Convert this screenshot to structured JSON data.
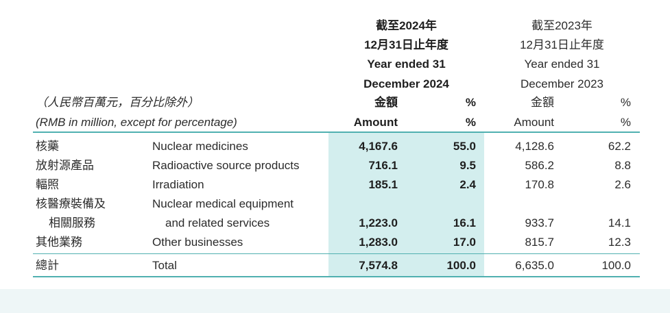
{
  "header": {
    "y2024": [
      "截至2024年",
      "12月31日止年度",
      "Year ended 31",
      "December 2024"
    ],
    "y2023": [
      "截至2023年",
      "12月31日止年度",
      "Year ended 31",
      "December 2023"
    ],
    "unit_cn": "（人民幣百萬元，百分比除外）",
    "unit_en": "(RMB in million, except for percentage)",
    "amount_cn": "金額",
    "amount_en": "Amount",
    "pct": "%"
  },
  "rows": [
    {
      "cn": "核藥",
      "en": "Nuclear medicines",
      "a2024": "4,167.6",
      "p2024": "55.0",
      "a2023": "4,128.6",
      "p2023": "62.2"
    },
    {
      "cn": "放射源產品",
      "en": "Radioactive source products",
      "a2024": "716.1",
      "p2024": "9.5",
      "a2023": "586.2",
      "p2023": "8.8"
    },
    {
      "cn": "輻照",
      "en": "Irradiation",
      "a2024": "185.1",
      "p2024": "2.4",
      "a2023": "170.8",
      "p2023": "2.6"
    },
    {
      "cn": "核醫療裝備及",
      "cn2": "相關服務",
      "en": "Nuclear medical equipment",
      "en2": "and related services",
      "a2024": "1,223.0",
      "p2024": "16.1",
      "a2023": "933.7",
      "p2023": "14.1"
    },
    {
      "cn": "其他業務",
      "en": "Other businesses",
      "a2024": "1,283.0",
      "p2024": "17.0",
      "a2023": "815.7",
      "p2023": "12.3"
    }
  ],
  "total": {
    "cn": "總計",
    "en": "Total",
    "a2024": "7,574.8",
    "p2024": "100.0",
    "a2023": "6,635.0",
    "p2023": "100.0"
  }
}
